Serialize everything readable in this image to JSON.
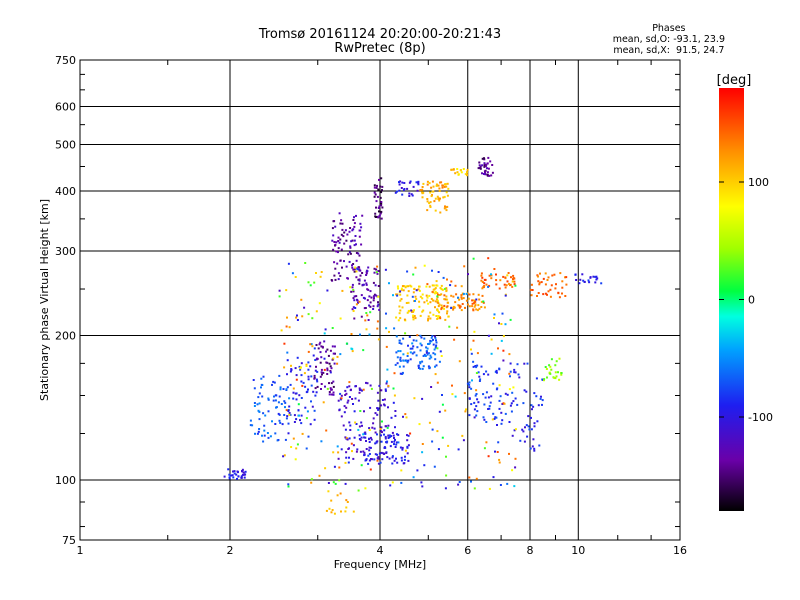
{
  "header": {
    "title_line1": "Tromsø 20161124 20:20:00-20:21:43",
    "title_line2": "RwPretec (8p)"
  },
  "phase_stats": {
    "label": "Phases",
    "o_line": "mean, sd,O: -93.1, 23.9",
    "x_line": "mean, sd,X:  91.5, 24.7"
  },
  "colorbar": {
    "unit_label": "[deg]",
    "tick_labels": [
      "100",
      "0",
      "-100"
    ],
    "tick_values": [
      100,
      0,
      -100
    ],
    "range": [
      -180,
      180
    ]
  },
  "chart_data": {
    "type": "scatter",
    "xlabel": "Frequency [MHz]",
    "ylabel": "Stationary phase Virtual Height [km]",
    "xscale": "log",
    "yscale": "log",
    "xlim": [
      1,
      16
    ],
    "ylim": [
      75,
      750
    ],
    "xticks": [
      1,
      2,
      4,
      6,
      8,
      10,
      16
    ],
    "xtick_labels": [
      "1",
      "2",
      "4",
      "6",
      "8",
      "10",
      "16"
    ],
    "yticks": [
      75,
      100,
      200,
      300,
      400,
      500,
      600,
      750
    ],
    "ytick_labels": [
      "75",
      "100",
      "200",
      "300",
      "400",
      "500",
      "600",
      "750"
    ],
    "grid": true,
    "clusters": [
      {
        "x": [
          1.95,
          2.15
        ],
        "y": [
          100,
          106
        ],
        "phase": -95,
        "n": 30
      },
      {
        "x": [
          2.2,
          2.6
        ],
        "y": [
          120,
          165
        ],
        "phase": -70,
        "n": 70
      },
      {
        "x": [
          2.6,
          3.0
        ],
        "y": [
          130,
          180
        ],
        "phase": -90,
        "n": 60
      },
      {
        "x": [
          2.95,
          3.25
        ],
        "y": [
          150,
          195
        ],
        "phase": -140,
        "n": 60
      },
      {
        "x": [
          3.2,
          3.7
        ],
        "y": [
          260,
          360
        ],
        "phase": -135,
        "n": 90
      },
      {
        "x": [
          3.5,
          4.0
        ],
        "y": [
          215,
          280
        ],
        "phase": -130,
        "n": 70
      },
      {
        "x": [
          3.9,
          4.05
        ],
        "y": [
          350,
          430
        ],
        "phase": -150,
        "n": 35
      },
      {
        "x": [
          3.3,
          4.3
        ],
        "y": [
          110,
          160
        ],
        "phase": -110,
        "n": 120
      },
      {
        "x": [
          3.7,
          4.6
        ],
        "y": [
          108,
          125
        ],
        "phase": -95,
        "n": 80
      },
      {
        "x": [
          4.3,
          5.3
        ],
        "y": [
          170,
          200
        ],
        "phase": -65,
        "n": 90
      },
      {
        "x": [
          4.3,
          5.5
        ],
        "y": [
          215,
          255
        ],
        "phase": 100,
        "n": 120
      },
      {
        "x": [
          4.8,
          5.5
        ],
        "y": [
          360,
          420
        ],
        "phase": 115,
        "n": 60
      },
      {
        "x": [
          4.3,
          4.8
        ],
        "y": [
          390,
          420
        ],
        "phase": -100,
        "n": 25
      },
      {
        "x": [
          5.5,
          6.0
        ],
        "y": [
          430,
          445
        ],
        "phase": 100,
        "n": 18
      },
      {
        "x": [
          6.3,
          6.75
        ],
        "y": [
          430,
          470
        ],
        "phase": -140,
        "n": 35
      },
      {
        "x": [
          5.2,
          6.5
        ],
        "y": [
          225,
          245
        ],
        "phase": 130,
        "n": 70
      },
      {
        "x": [
          6.0,
          7.5
        ],
        "y": [
          130,
          175
        ],
        "phase": -85,
        "n": 70
      },
      {
        "x": [
          6.3,
          7.5
        ],
        "y": [
          250,
          270
        ],
        "phase": 140,
        "n": 40
      },
      {
        "x": [
          7.3,
          8.5
        ],
        "y": [
          115,
          175
        ],
        "phase": -90,
        "n": 50
      },
      {
        "x": [
          8.0,
          9.5
        ],
        "y": [
          240,
          270
        ],
        "phase": 140,
        "n": 40
      },
      {
        "x": [
          8.5,
          9.3
        ],
        "y": [
          160,
          180
        ],
        "phase": 40,
        "n": 25
      },
      {
        "x": [
          9.8,
          11.2
        ],
        "y": [
          255,
          270
        ],
        "phase": -90,
        "n": 20
      },
      {
        "x": [
          3.1,
          3.6
        ],
        "y": [
          85,
          95
        ],
        "phase": 110,
        "n": 15
      },
      {
        "x": [
          2.5,
          7.5
        ],
        "y": [
          95,
          290
        ],
        "phase": "mixed",
        "n": 350
      }
    ]
  }
}
